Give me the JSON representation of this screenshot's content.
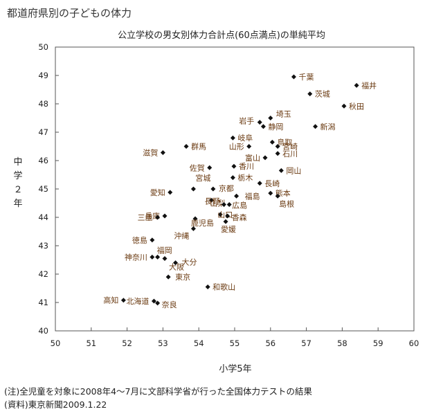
{
  "header": {
    "title": "都道府県別の子どもの体力"
  },
  "footer": {
    "note": "(注)全児童を対象に2008年4～7月に文部科学省が行った全国体力テストの結果",
    "source": "(資料)東京新聞2009.1.22"
  },
  "chart_data": {
    "type": "scatter",
    "title": "公立学校の男女別体力合計点(60点満点)の単純平均",
    "xlabel": "小学5年",
    "ylabel": "中学２年",
    "xlim": [
      50,
      60
    ],
    "ylim": [
      40,
      50
    ],
    "xticks": [
      50,
      51,
      52,
      53,
      54,
      55,
      56,
      57,
      58,
      59,
      60
    ],
    "yticks": [
      40,
      41,
      42,
      43,
      44,
      45,
      46,
      47,
      48,
      49,
      50
    ],
    "grid": false,
    "point_color": "#111111",
    "label_color": "#6b3b12",
    "points": [
      {
        "name": "千葉",
        "x": 56.65,
        "y": 48.95
      },
      {
        "name": "福井",
        "x": 58.4,
        "y": 48.65
      },
      {
        "name": "茨城",
        "x": 57.1,
        "y": 48.35
      },
      {
        "name": "秋田",
        "x": 58.05,
        "y": 47.92
      },
      {
        "name": "岩手",
        "x": 55.7,
        "y": 47.35
      },
      {
        "name": "埼玉",
        "x": 56.0,
        "y": 47.5
      },
      {
        "name": "静岡",
        "x": 55.8,
        "y": 47.2
      },
      {
        "name": "新潟",
        "x": 57.25,
        "y": 47.2
      },
      {
        "name": "岐阜",
        "x": 54.95,
        "y": 46.8
      },
      {
        "name": "鳥取",
        "x": 56.05,
        "y": 46.65
      },
      {
        "name": "山形",
        "x": 55.4,
        "y": 46.5
      },
      {
        "name": "宮崎",
        "x": 56.2,
        "y": 46.5
      },
      {
        "name": "群馬",
        "x": 53.65,
        "y": 46.5
      },
      {
        "name": "滋賀",
        "x": 53.0,
        "y": 46.28
      },
      {
        "name": "石川",
        "x": 56.2,
        "y": 46.25
      },
      {
        "name": "富山",
        "x": 55.85,
        "y": 46.1
      },
      {
        "name": "香川",
        "x": 54.98,
        "y": 45.8
      },
      {
        "name": "佐賀",
        "x": 54.3,
        "y": 45.75
      },
      {
        "name": "岡山",
        "x": 56.3,
        "y": 45.65
      },
      {
        "name": "栃木",
        "x": 54.95,
        "y": 45.4
      },
      {
        "name": "長崎",
        "x": 55.7,
        "y": 45.2
      },
      {
        "name": "宮城",
        "x": 53.85,
        "y": 45.0
      },
      {
        "name": "京都",
        "x": 54.4,
        "y": 45.0
      },
      {
        "name": "愛知",
        "x": 53.2,
        "y": 44.88
      },
      {
        "name": "熊本",
        "x": 56.0,
        "y": 44.85
      },
      {
        "name": "福島",
        "x": 55.05,
        "y": 44.75
      },
      {
        "name": "島根",
        "x": 56.2,
        "y": 44.75
      },
      {
        "name": "山梨",
        "x": 54.35,
        "y": 44.6
      },
      {
        "name": "長野",
        "x": 54.7,
        "y": 44.45
      },
      {
        "name": "広島",
        "x": 54.85,
        "y": 44.45
      },
      {
        "name": "兵庫",
        "x": 53.05,
        "y": 44.05
      },
      {
        "name": "山口",
        "x": 54.6,
        "y": 44.1
      },
      {
        "name": "香森",
        "x": 54.8,
        "y": 44.05
      },
      {
        "name": "三重",
        "x": 52.85,
        "y": 44.0
      },
      {
        "name": "鹿児島",
        "x": 53.9,
        "y": 43.95
      },
      {
        "name": "愛媛",
        "x": 54.75,
        "y": 43.85
      },
      {
        "name": "沖縄",
        "x": 53.85,
        "y": 43.6
      },
      {
        "name": "徳島",
        "x": 52.7,
        "y": 43.2
      },
      {
        "name": "福岡",
        "x": 52.85,
        "y": 42.6
      },
      {
        "name": "神奈川",
        "x": 52.7,
        "y": 42.6
      },
      {
        "name": "大阪",
        "x": 53.05,
        "y": 42.55
      },
      {
        "name": "大分",
        "x": 53.35,
        "y": 42.4
      },
      {
        "name": "東京",
        "x": 53.15,
        "y": 41.9
      },
      {
        "name": "和歌山",
        "x": 54.25,
        "y": 41.55
      },
      {
        "name": "北海道",
        "x": 52.75,
        "y": 41.05
      },
      {
        "name": "奈良",
        "x": 52.85,
        "y": 40.98
      },
      {
        "name": "高知",
        "x": 51.9,
        "y": 41.08
      }
    ]
  }
}
